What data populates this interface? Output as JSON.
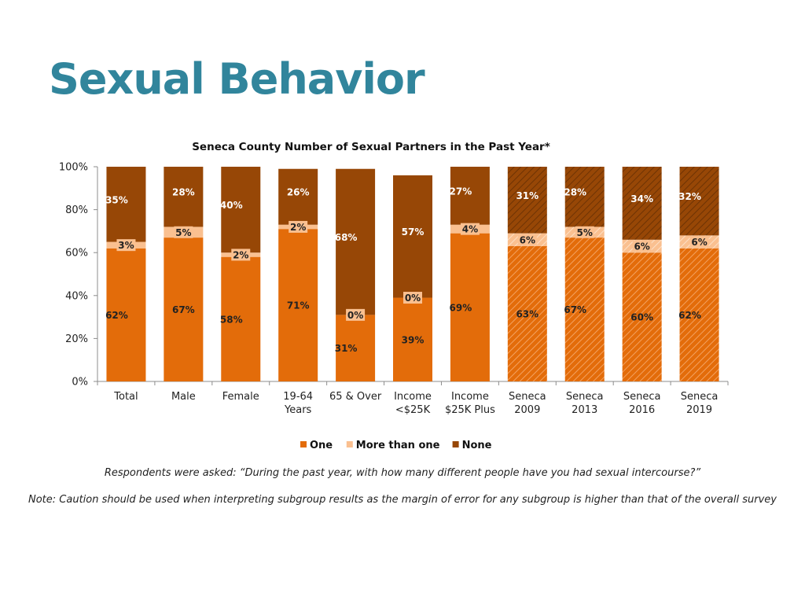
{
  "slide": {
    "title": "Sexual Behavior",
    "title_color": "#31859C"
  },
  "notes": {
    "question": "Respondents were asked: “During the past year, with how many different people have you had sexual intercourse?”",
    "caution": "Note: Caution should be used when interpreting subgroup results as the margin of error for any subgroup is higher than that of the overall survey"
  },
  "chart_data": {
    "type": "bar",
    "stacked": true,
    "title": "Seneca County Number of Sexual Partners in the Past Year*",
    "categories": [
      [
        "Total"
      ],
      [
        "Male"
      ],
      [
        "Female"
      ],
      [
        "19-64",
        "Years"
      ],
      [
        "65 & Over"
      ],
      [
        "Income",
        "<$25K"
      ],
      [
        "Income",
        "$25K Plus"
      ],
      [
        "Seneca",
        "2009"
      ],
      [
        "Seneca",
        "2013"
      ],
      [
        "Seneca",
        "2016"
      ],
      [
        "Seneca",
        "2019"
      ]
    ],
    "hatched": [
      false,
      false,
      false,
      false,
      false,
      false,
      false,
      true,
      true,
      true,
      true
    ],
    "series": [
      {
        "name": "One",
        "color": "#E36C0A",
        "text_color": "#222222",
        "values": [
          62,
          67,
          58,
          71,
          31,
          39,
          69,
          63,
          67,
          60,
          62
        ]
      },
      {
        "name": "More than one",
        "color": "#FAC090",
        "text_color": "#222222",
        "values": [
          3,
          5,
          2,
          2,
          0,
          0,
          4,
          6,
          5,
          6,
          6
        ]
      },
      {
        "name": "None",
        "color": "#974706",
        "text_color": "#FFFFFF",
        "values": [
          35,
          28,
          40,
          26,
          68,
          57,
          27,
          31,
          28,
          34,
          32
        ]
      }
    ],
    "ylim": [
      0,
      100
    ],
    "yticks": [
      "0%",
      "20%",
      "40%",
      "60%",
      "80%",
      "100%"
    ],
    "legend_position": "bottom",
    "grid": false
  }
}
